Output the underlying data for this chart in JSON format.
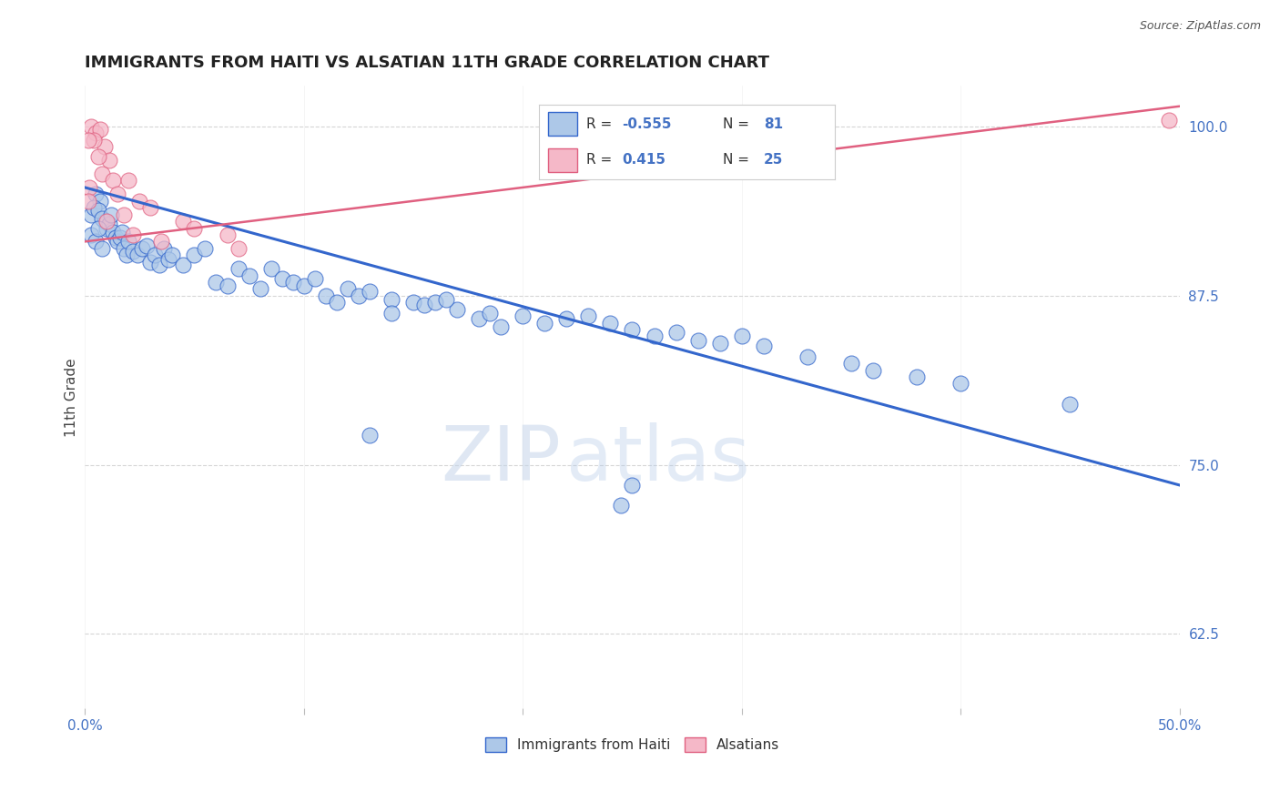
{
  "title": "IMMIGRANTS FROM HAITI VS ALSATIAN 11TH GRADE CORRELATION CHART",
  "source": "Source: ZipAtlas.com",
  "ylabel": "11th Grade",
  "xlim": [
    0.0,
    50.0
  ],
  "ylim": [
    57.0,
    103.0
  ],
  "yticks": [
    62.5,
    75.0,
    87.5,
    100.0
  ],
  "ytick_labels": [
    "62.5%",
    "75.0%",
    "87.5%",
    "100.0%"
  ],
  "legend_labels": [
    "Immigrants from Haiti",
    "Alsatians"
  ],
  "r_haiti": -0.555,
  "n_haiti": 81,
  "r_alsatian": 0.415,
  "n_alsatian": 25,
  "haiti_color": "#adc8e8",
  "alsatian_color": "#f5b8c8",
  "haiti_line_color": "#3366cc",
  "alsatian_line_color": "#e06080",
  "axis_color": "#4472c4",
  "background_color": "#ffffff",
  "haiti_trend_x": [
    0.0,
    50.0
  ],
  "haiti_trend_y": [
    95.5,
    73.5
  ],
  "alsatian_trend_x": [
    0.0,
    50.0
  ],
  "alsatian_trend_y": [
    91.5,
    101.5
  ],
  "haiti_scatter": [
    [
      0.3,
      93.5
    ],
    [
      0.5,
      95.0
    ],
    [
      0.7,
      94.5
    ],
    [
      0.9,
      93.0
    ],
    [
      1.0,
      92.5
    ],
    [
      0.4,
      94.0
    ],
    [
      0.6,
      93.8
    ],
    [
      0.8,
      93.2
    ],
    [
      1.1,
      92.8
    ],
    [
      1.2,
      93.5
    ],
    [
      1.3,
      92.2
    ],
    [
      1.4,
      91.8
    ],
    [
      0.3,
      92.0
    ],
    [
      0.5,
      91.5
    ],
    [
      0.6,
      92.5
    ],
    [
      0.8,
      91.0
    ],
    [
      1.5,
      91.5
    ],
    [
      1.6,
      91.8
    ],
    [
      1.7,
      92.2
    ],
    [
      1.8,
      91.0
    ],
    [
      1.9,
      90.5
    ],
    [
      2.0,
      91.5
    ],
    [
      2.2,
      90.8
    ],
    [
      2.4,
      90.5
    ],
    [
      2.6,
      91.0
    ],
    [
      2.8,
      91.2
    ],
    [
      3.0,
      90.0
    ],
    [
      3.2,
      90.5
    ],
    [
      3.4,
      89.8
    ],
    [
      3.6,
      91.0
    ],
    [
      3.8,
      90.2
    ],
    [
      4.0,
      90.5
    ],
    [
      4.5,
      89.8
    ],
    [
      5.0,
      90.5
    ],
    [
      5.5,
      91.0
    ],
    [
      6.0,
      88.5
    ],
    [
      6.5,
      88.2
    ],
    [
      7.0,
      89.5
    ],
    [
      7.5,
      89.0
    ],
    [
      8.0,
      88.0
    ],
    [
      8.5,
      89.5
    ],
    [
      9.0,
      88.8
    ],
    [
      9.5,
      88.5
    ],
    [
      10.0,
      88.2
    ],
    [
      10.5,
      88.8
    ],
    [
      11.0,
      87.5
    ],
    [
      11.5,
      87.0
    ],
    [
      12.0,
      88.0
    ],
    [
      12.5,
      87.5
    ],
    [
      13.0,
      87.8
    ],
    [
      14.0,
      87.2
    ],
    [
      15.0,
      87.0
    ],
    [
      15.5,
      86.8
    ],
    [
      16.0,
      87.0
    ],
    [
      17.0,
      86.5
    ],
    [
      18.0,
      85.8
    ],
    [
      18.5,
      86.2
    ],
    [
      20.0,
      86.0
    ],
    [
      21.0,
      85.5
    ],
    [
      22.0,
      85.8
    ],
    [
      23.0,
      86.0
    ],
    [
      24.0,
      85.5
    ],
    [
      14.0,
      86.2
    ],
    [
      16.5,
      87.2
    ],
    [
      19.0,
      85.2
    ],
    [
      25.0,
      85.0
    ],
    [
      26.0,
      84.5
    ],
    [
      27.0,
      84.8
    ],
    [
      28.0,
      84.2
    ],
    [
      29.0,
      84.0
    ],
    [
      30.0,
      84.5
    ],
    [
      31.0,
      83.8
    ],
    [
      33.0,
      83.0
    ],
    [
      35.0,
      82.5
    ],
    [
      36.0,
      82.0
    ],
    [
      38.0,
      81.5
    ],
    [
      40.0,
      81.0
    ],
    [
      45.0,
      79.5
    ],
    [
      13.0,
      77.2
    ],
    [
      25.0,
      73.5
    ],
    [
      24.5,
      72.0
    ]
  ],
  "alsatian_scatter": [
    [
      0.3,
      100.0
    ],
    [
      0.5,
      99.5
    ],
    [
      0.7,
      99.8
    ],
    [
      0.9,
      98.5
    ],
    [
      1.1,
      97.5
    ],
    [
      0.4,
      99.0
    ],
    [
      0.6,
      97.8
    ],
    [
      0.8,
      96.5
    ],
    [
      1.3,
      96.0
    ],
    [
      0.2,
      95.5
    ],
    [
      1.5,
      95.0
    ],
    [
      2.0,
      96.0
    ],
    [
      2.5,
      94.5
    ],
    [
      3.0,
      94.0
    ],
    [
      4.5,
      93.0
    ],
    [
      1.8,
      93.5
    ],
    [
      5.0,
      92.5
    ],
    [
      6.5,
      92.0
    ],
    [
      0.15,
      94.5
    ],
    [
      1.0,
      93.0
    ],
    [
      2.2,
      92.0
    ],
    [
      3.5,
      91.5
    ],
    [
      7.0,
      91.0
    ],
    [
      0.15,
      99.0
    ],
    [
      49.5,
      100.5
    ]
  ],
  "watermark_zip": "ZIP",
  "watermark_atlas": "atlas",
  "watermark_color": "#d0dff0"
}
